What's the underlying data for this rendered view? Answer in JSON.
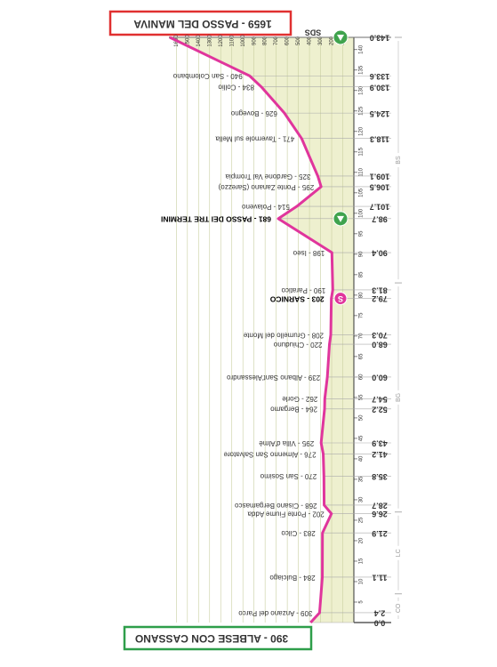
{
  "chart_data": {
    "type": "line",
    "start": "390 - ALBESE CON CASSANO",
    "finish": "1659 - PASSO DEL MANIVA",
    "elevation_axis_label": "SDS",
    "x": [
      0,
      2.4,
      11.1,
      21.9,
      26.6,
      28.7,
      35.8,
      41.2,
      43.9,
      52.2,
      54.7,
      60,
      68,
      70.3,
      79.2,
      81.3,
      90.4,
      98.7,
      101.7,
      106.5,
      109.1,
      118.3,
      124.5,
      130.9,
      133.6,
      143
    ],
    "x_labels": [
      "0.0",
      "2.4",
      "11.1",
      "21.9",
      "26.6",
      "28.7",
      "35.8",
      "41.2",
      "43.9",
      "52.2",
      "54.7",
      "60.0",
      "68.0",
      "70.3",
      "79.2",
      "81.3",
      "90.4",
      "98.7",
      "101.7",
      "106.5",
      "109.1",
      "118.3",
      "124.5",
      "130.9",
      "133.6",
      "143.0"
    ],
    "values": [
      390,
      309,
      284,
      283,
      202,
      268,
      270,
      276,
      295,
      264,
      262,
      239,
      220,
      208,
      203,
      190,
      198,
      681,
      514,
      295,
      325,
      471,
      626,
      834,
      940,
      1659
    ],
    "point_labels": [
      null,
      "309 - Anzano del Parco",
      "284 - Bulciago",
      "283 - Cilco",
      "202 - Ponte Fiume Adda",
      "268 - Cisano Bergamasco",
      "270 - San Sosimo",
      "276 - Almenno San Salvatore",
      "295 - Villa d'Almè",
      "264 - Bergamo",
      "262 - Gorle",
      "239 - Albano Sant'Alessandro",
      "220 - Chiuduno",
      "208 - Grumello del Monte",
      "203 - SARNICO",
      "190 - Paratico",
      "198 - Iseo",
      "681 - PASSO DEI TRE TERMINI",
      "514 - Polaveno",
      "295 - Ponte Zanano (Sarezzo)",
      "325 - Gardone Val Trompia",
      "471 - Tavernole sul Mella",
      "626 - Bovegno",
      "834 - Collio",
      "940 - San Colombano",
      null
    ],
    "sprint": [
      14
    ],
    "kom": [
      17,
      25
    ],
    "sprint_symbol": "S",
    "xlim": [
      0,
      143
    ],
    "ylim": [
      0,
      1700
    ],
    "xticks": [
      5,
      10,
      15,
      20,
      25,
      30,
      35,
      40,
      45,
      50,
      55,
      60,
      65,
      70,
      75,
      80,
      85,
      90,
      95,
      100,
      105,
      110,
      115,
      120,
      125,
      130,
      135,
      140
    ],
    "yticks": [
      100,
      200,
      300,
      400,
      500,
      600,
      700,
      800,
      900,
      1000,
      1100,
      1200,
      1300,
      1400,
      1500,
      1600
    ],
    "regions": [
      {
        "name": "CO",
        "from": 0,
        "to": 7
      },
      {
        "name": "LC",
        "from": 7,
        "to": 27
      },
      {
        "name": "BG",
        "from": 27,
        "to": 83
      },
      {
        "name": "BS",
        "from": 83,
        "to": 143
      }
    ],
    "color": "#e0359c",
    "fill": "#eef0cf"
  }
}
